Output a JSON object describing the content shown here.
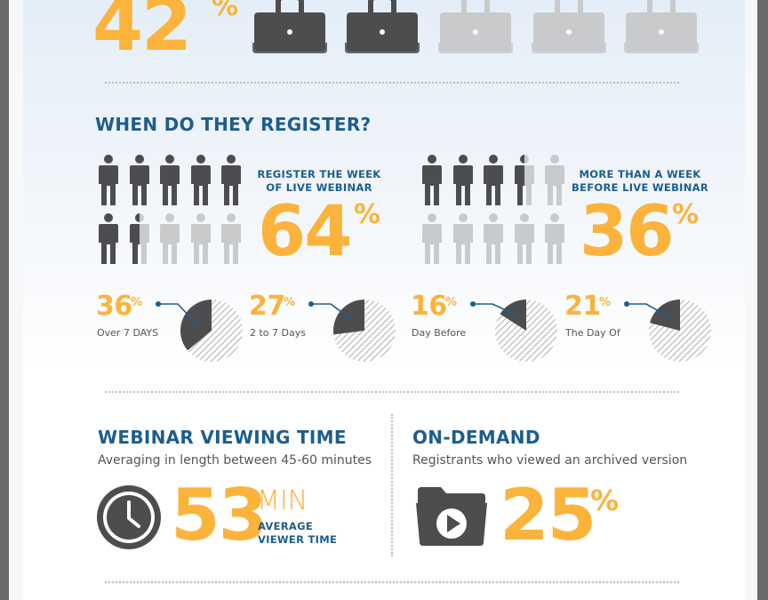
{
  "top": {
    "stat_value": "42",
    "stat_unit": "%"
  },
  "register": {
    "title": "WHEN DO THEY REGISTER?",
    "week_of": {
      "label_line1": "REGISTER THE WEEK",
      "label_line2": "OF LIVE WEBINAR",
      "value": "64",
      "unit": "%"
    },
    "more_than_week": {
      "label_line1": "MORE THAN A WEEK",
      "label_line2": "BEFORE LIVE WEBINAR",
      "value": "36",
      "unit": "%"
    },
    "pies": [
      {
        "value": "36",
        "unit": "%",
        "label": "Over 7 DAYS",
        "fraction": 0.36
      },
      {
        "value": "27",
        "unit": "%",
        "label": "2 to 7 Days",
        "fraction": 0.27
      },
      {
        "value": "16",
        "unit": "%",
        "label": "Day Before",
        "fraction": 0.16
      },
      {
        "value": "21",
        "unit": "%",
        "label": "The Day Of",
        "fraction": 0.21
      }
    ]
  },
  "viewing": {
    "title": "WEBINAR VIEWING TIME",
    "subtitle": "Averaging in length between 45-60 minutes",
    "value": "53",
    "unit": "MIN",
    "caption_line1": "AVERAGE",
    "caption_line2": "VIEWER TIME"
  },
  "on_demand": {
    "title": "ON-DEMAND",
    "subtitle": "Registrants who viewed an archived version",
    "value": "25",
    "unit": "%"
  },
  "colors": {
    "orange": "#fbb33c",
    "navy": "#1d5d8e",
    "dark_icon": "#4d4d4f",
    "light_icon": "#c9cacc"
  },
  "icons": {
    "laptop": "laptop-icon",
    "person": "person-icon",
    "clock": "clock-icon",
    "folder": "video-folder-icon"
  }
}
